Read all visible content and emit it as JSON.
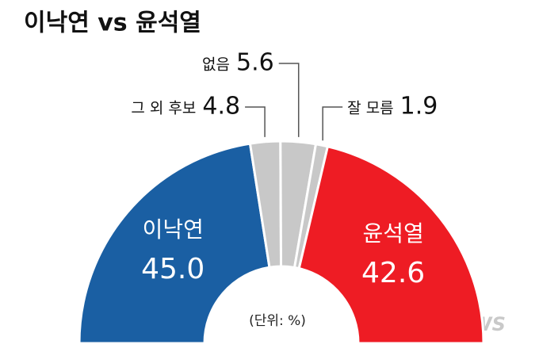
{
  "chart_data": {
    "type": "half-donut",
    "title": "이낙연 vs 윤석열",
    "subtitle": "(단위: %)",
    "watermark": "SBNNEWS",
    "categories": [
      "이낙연",
      "그 외 후보",
      "없음",
      "잘 모름",
      "윤석열"
    ],
    "values": [
      45.0,
      4.8,
      5.6,
      1.9,
      42.6
    ],
    "value_labels": [
      "45.0",
      "4.8",
      "5.6",
      "1.9",
      "42.6"
    ],
    "colors": [
      "#1a5fa3",
      "#c8c8c8",
      "#c8c8c8",
      "#c8c8c8",
      "#ee1c24"
    ]
  }
}
